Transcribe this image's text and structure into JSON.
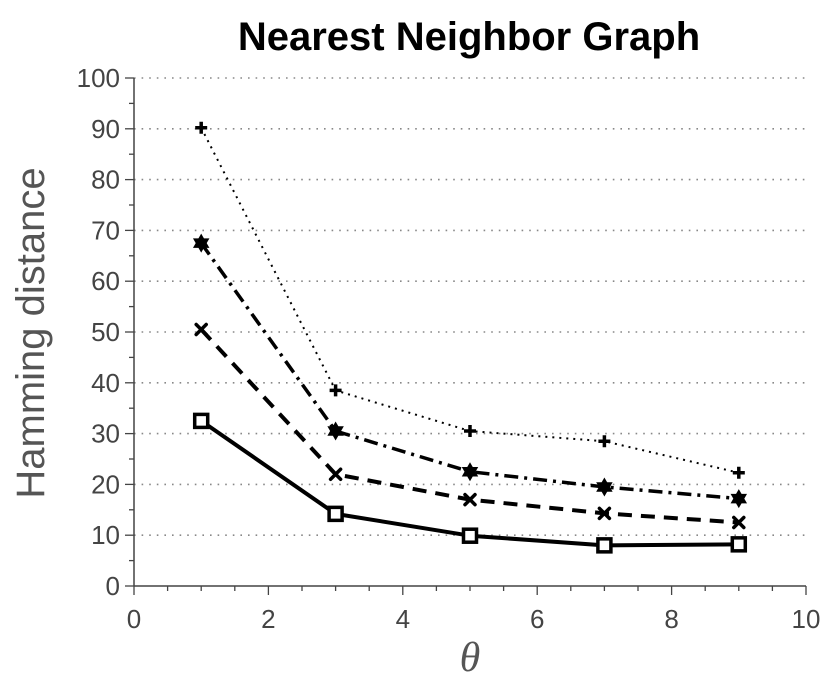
{
  "chart_data": {
    "type": "line",
    "title": "Nearest Neighbor Graph",
    "xlabel": "θ",
    "ylabel": "Hamming distance",
    "xlim": [
      0,
      10
    ],
    "ylim": [
      0,
      100
    ],
    "xticks": [
      0,
      2,
      4,
      6,
      8,
      10
    ],
    "yticks": [
      0,
      10,
      20,
      30,
      40,
      50,
      60,
      70,
      80,
      90,
      100
    ],
    "grid": "horizontal dotted",
    "x": [
      1,
      3,
      5,
      7,
      9
    ],
    "series": [
      {
        "values": [
          32.5,
          14.2,
          9.9,
          8.0,
          8.2
        ],
        "line_style": "solid",
        "marker": "square",
        "color": "#000000"
      },
      {
        "values": [
          50.5,
          22.0,
          17.0,
          14.3,
          12.5
        ],
        "line_style": "dashed",
        "marker": "x",
        "color": "#000000"
      },
      {
        "values": [
          67.5,
          30.5,
          22.5,
          19.5,
          17.2
        ],
        "line_style": "dashdot",
        "marker": "star",
        "color": "#000000"
      },
      {
        "values": [
          90.2,
          38.5,
          30.5,
          28.5,
          22.3
        ],
        "line_style": "dotted",
        "marker": "plus",
        "color": "#000000"
      }
    ]
  }
}
